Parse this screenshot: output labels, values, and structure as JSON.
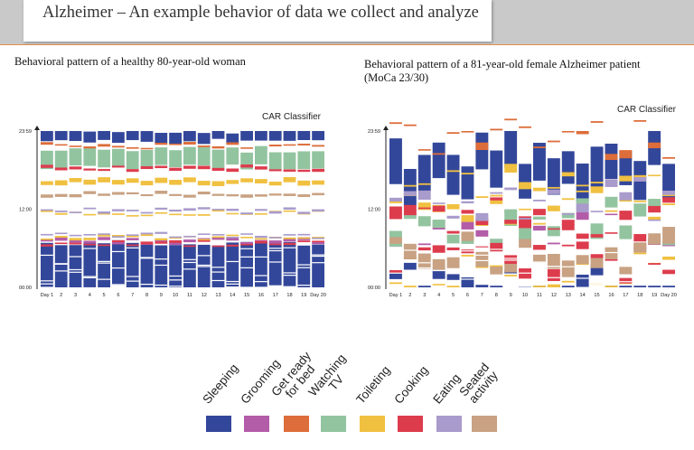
{
  "slide": {
    "title": "Alzheimer – An example behavior of data we collect and analyze"
  },
  "left_chart": {
    "heading": "Behavioral pattern of a healthy 80-year-old woman",
    "classifier_label": "CAR Classifier"
  },
  "right_chart": {
    "heading": "Behavioral pattern of a 81-year-old female Alzheimer patient (MoCa 23/30)",
    "classifier_label": "CAR Classifier"
  },
  "legend": [
    {
      "label": "Sleeping",
      "color": "#33479a"
    },
    {
      "label": "Grooming",
      "color": "#b35ca8"
    },
    {
      "label": "Get ready\nfor bed",
      "color": "#dd6d3a"
    },
    {
      "label": "Watching\nTV",
      "color": "#93c4a0"
    },
    {
      "label": "Toileting",
      "color": "#f0c040"
    },
    {
      "label": "Cooking",
      "color": "#dd3c4d"
    },
    {
      "label": "Eating",
      "color": "#a99bcc"
    },
    {
      "label": "Seated\nactivity",
      "color": "#c8a283"
    }
  ],
  "chart_data": [
    {
      "type": "heatmap",
      "title": "Behavioral pattern of a healthy 80-year-old woman",
      "x_categories": [
        "Day 1",
        "2",
        "3",
        "4",
        "5",
        "6",
        "7",
        "8",
        "9",
        "10",
        "11",
        "12",
        "13",
        "14",
        "15",
        "16",
        "17",
        "18",
        "19",
        "Day 20"
      ],
      "y_ticks": [
        "00:00",
        "12:00",
        "23:59"
      ],
      "y_range_hours": [
        0,
        24
      ],
      "series": [
        {
          "name": "Sleeping",
          "intervals": [
            [
              0,
              6.8
            ],
            [
              22.4,
              24
            ]
          ]
        },
        {
          "name": "Grooming",
          "intervals": [
            [
              6.9,
              7.3
            ]
          ]
        },
        {
          "name": "Get ready for bed",
          "intervals": [
            [
              21.6,
              21.9
            ]
          ]
        },
        {
          "name": "Watching TV",
          "intervals": [
            [
              18.5,
              21.2
            ]
          ]
        },
        {
          "name": "Toileting",
          "intervals": [
            [
              7.5,
              7.8
            ],
            [
              11.3,
              11.5
            ],
            [
              15.8,
              16.5
            ]
          ]
        },
        {
          "name": "Cooking",
          "intervals": [
            [
              6.6,
              6.9
            ],
            [
              18.0,
              18.4
            ]
          ]
        },
        {
          "name": "Eating",
          "intervals": [
            [
              11.6,
              11.9
            ],
            [
              7.9,
              8.1
            ]
          ]
        },
        {
          "name": "Seated activity",
          "intervals": [
            [
              14.0,
              14.4
            ]
          ]
        }
      ]
    },
    {
      "type": "heatmap",
      "title": "Behavioral pattern of a 81-year-old female Alzheimer patient (MoCa 23/30)",
      "x_categories": [
        "Day 1",
        "2",
        "3",
        "4",
        "5",
        "6",
        "7",
        "8",
        "9",
        "10",
        "11",
        "12",
        "13",
        "14",
        "15",
        "16",
        "17",
        "18",
        "19",
        "Day 20"
      ],
      "y_ticks": [
        "00:00",
        "12:00",
        "23:59"
      ],
      "y_range_hours": [
        0,
        24
      ],
      "series": [
        {
          "name": "Sleeping",
          "intervals": [
            [
              0,
              1.5
            ],
            [
              16.0,
              22.0
            ]
          ]
        },
        {
          "name": "Grooming",
          "intervals": [
            [
              8.0,
              8.4
            ]
          ]
        },
        {
          "name": "Get ready for bed",
          "intervals": [
            [
              22.2,
              22.5
            ]
          ]
        },
        {
          "name": "Watching TV",
          "intervals": [
            [
              9.0,
              10.5
            ]
          ]
        },
        {
          "name": "Toileting",
          "intervals": [
            [
              2.0,
              2.3
            ],
            [
              12.0,
              12.3
            ],
            [
              15.0,
              15.3
            ]
          ]
        },
        {
          "name": "Cooking",
          "intervals": [
            [
              3.0,
              4.0
            ],
            [
              10.0,
              11.0
            ]
          ]
        },
        {
          "name": "Eating",
          "intervals": [
            [
              13.0,
              13.4
            ]
          ]
        },
        {
          "name": "Seated activity",
          "intervals": [
            [
              4.0,
              6.0
            ]
          ]
        }
      ]
    }
  ]
}
